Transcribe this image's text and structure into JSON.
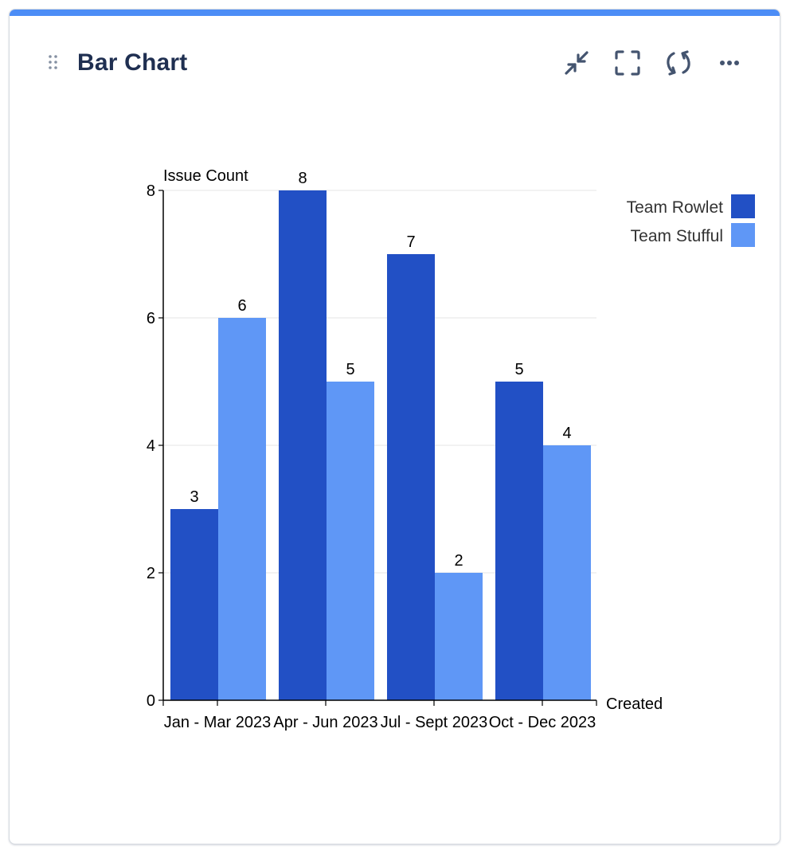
{
  "widget": {
    "title": "Bar Chart",
    "accent": "#4c8df6",
    "title_color": "#1f2f51",
    "icon_color": "#44546f",
    "actions": [
      {
        "name": "shrink-icon"
      },
      {
        "name": "fullscreen-icon"
      },
      {
        "name": "refresh-icon"
      },
      {
        "name": "more-icon"
      }
    ]
  },
  "chart_data": {
    "type": "bar",
    "title": "",
    "ylabel": "Issue Count",
    "xlabel": "Created",
    "ylim": [
      0,
      8
    ],
    "yticks": [
      0,
      2,
      4,
      6,
      8
    ],
    "categories": [
      "Jan - Mar 2023",
      "Apr - Jun 2023",
      "Jul - Sept 2023",
      "Oct - Dec 2023"
    ],
    "series": [
      {
        "name": "Team Rowlet",
        "color": "#2250c5",
        "values": [
          3,
          8,
          7,
          5
        ]
      },
      {
        "name": "Team Stufful",
        "color": "#5f97f6",
        "values": [
          6,
          5,
          2,
          4
        ]
      }
    ],
    "grid": true,
    "legend": "top-right",
    "data_labels": true
  }
}
